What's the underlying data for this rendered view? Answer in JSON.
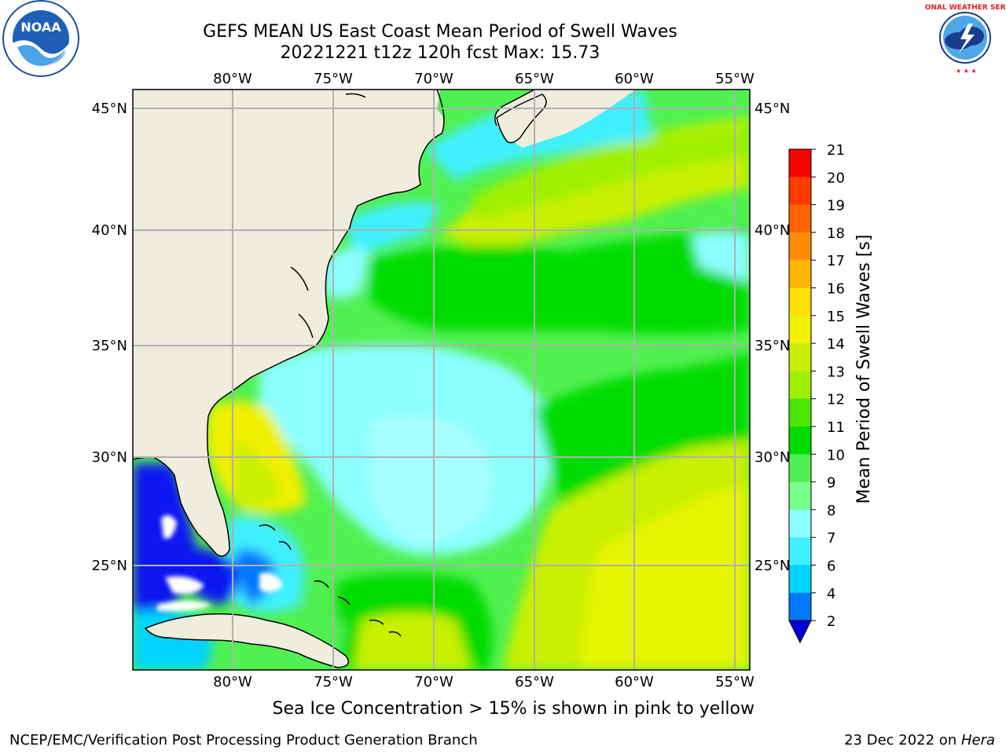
{
  "title_line1": "GEFS MEAN US East Coast Mean Period of Swell Waves",
  "title_line2": "20221221 t12z 120h fcst   Max: 15.73",
  "lon_labels": [
    "80°W",
    "75°W",
    "70°W",
    "65°W",
    "60°W",
    "55°W"
  ],
  "lat_labels": [
    "45°N",
    "40°N",
    "35°N",
    "30°N",
    "25°N"
  ],
  "colorbar": {
    "label": "Mean Period of Swell Waves [s]",
    "ticks": [
      "2",
      "4",
      "6",
      "7",
      "8",
      "9",
      "10",
      "11",
      "12",
      "13",
      "14",
      "15",
      "16",
      "17",
      "18",
      "19",
      "20",
      "21"
    ],
    "tick_values": [
      2,
      4,
      6,
      7,
      8,
      9,
      10,
      11,
      12,
      13,
      14,
      15,
      16,
      17,
      18,
      19,
      20,
      21
    ],
    "colors": [
      "#0a14f0",
      "#0078ff",
      "#00d4ff",
      "#40f0ff",
      "#8cffff",
      "#78ff8c",
      "#50f050",
      "#00dc00",
      "#4ce600",
      "#a0f000",
      "#c8f000",
      "#f0f000",
      "#ffe100",
      "#ffb400",
      "#ff8c00",
      "#ff6400",
      "#ff3c00",
      "#ff0000"
    ],
    "extend_color": "#0000dc"
  },
  "caption": "Sea Ice Concentration > 15% is shown in pink to yellow",
  "footer_left": "NCEP/EMC/Verification Post Processing Product Generation Branch",
  "footer_date": "23 Dec 2022 on ",
  "footer_host": "Hera",
  "logos": {
    "noaa_text": "NOAA",
    "nws_text": "NATIONAL WEATHER SERVICE"
  },
  "colors": {
    "land": "#efedde",
    "grid": "#b0b0b0",
    "coast": "#000000"
  }
}
